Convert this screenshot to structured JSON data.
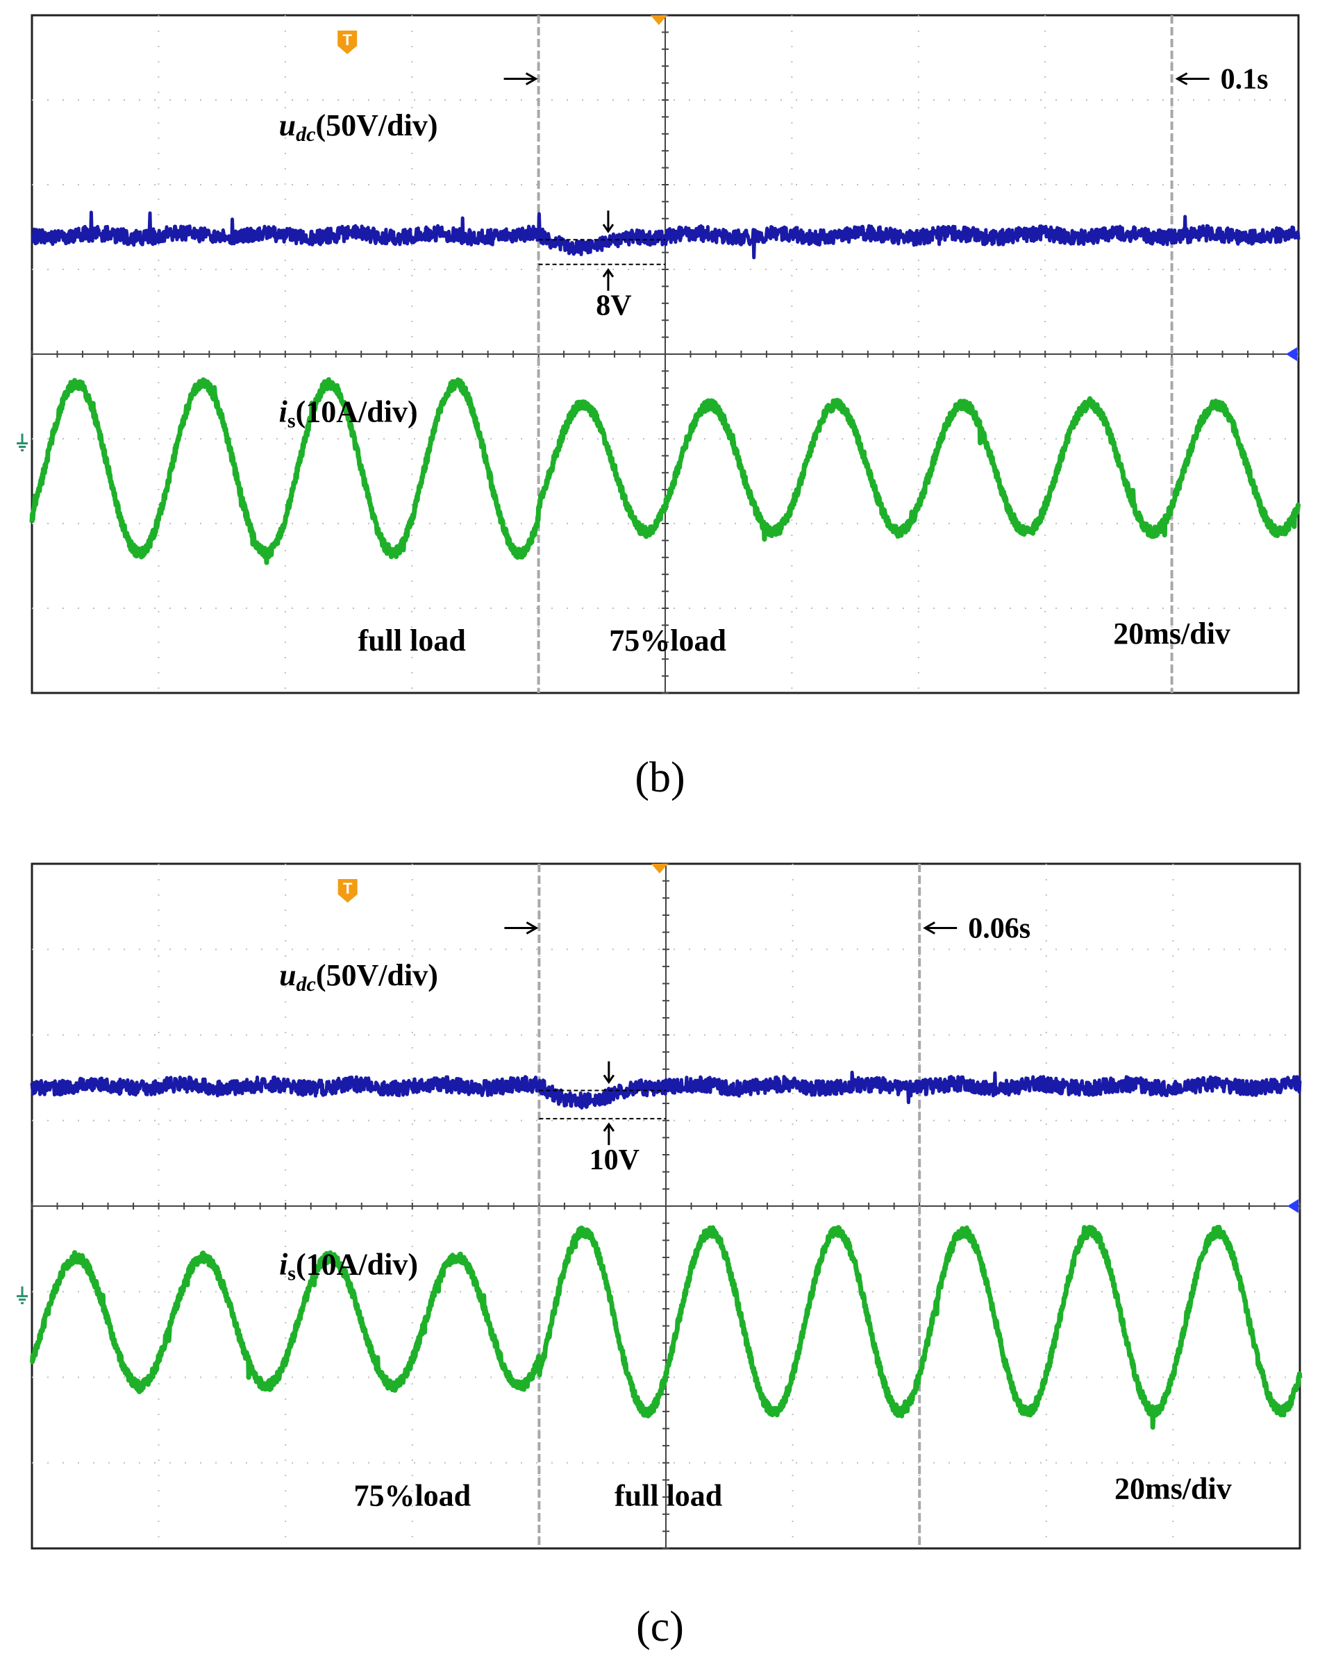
{
  "chart_data": [
    {
      "type": "line",
      "caption": "(b)",
      "title": "",
      "xlabel": "",
      "ylabel": "",
      "grid": true,
      "timebase": "20ms/div",
      "x_divisions": 10,
      "y_divisions": 8,
      "trigger_marker": "T",
      "series": [
        {
          "name": "udc",
          "label_main": "u",
          "label_sub": "dc",
          "label_scale": "(50V/div)",
          "color": "#1a1aa8",
          "divisions_from_top": 2.6,
          "step_at_div": 4.0,
          "recover_at_div": 5.0,
          "dip_divisions": 0.16
        },
        {
          "name": "is",
          "label_main": "i",
          "label_sub": "s",
          "label_scale": "(10A/div)",
          "color": "#1fb02a",
          "cycles_per_div": 1.0,
          "phase_offset_div": 0.1,
          "pre_amplitude_div": 1.0,
          "post_amplitude_div": 0.75,
          "step_at_div": 4.0
        }
      ],
      "annotations": {
        "dip_value": "8V",
        "interval_value": "0.1s",
        "interval_start_div": 4.0,
        "interval_end_div": 9.0,
        "region_left_label": "full load",
        "region_right_label": "75%load"
      }
    },
    {
      "type": "line",
      "caption": "(c)",
      "title": "",
      "xlabel": "",
      "ylabel": "",
      "grid": true,
      "timebase": "20ms/div",
      "x_divisions": 10,
      "y_divisions": 8,
      "trigger_marker": "T",
      "series": [
        {
          "name": "udc",
          "label_main": "u",
          "label_sub": "dc",
          "label_scale": "(50V/div)",
          "color": "#1a1aa8",
          "divisions_from_top": 2.6,
          "step_at_div": 4.0,
          "recover_at_div": 5.0,
          "dip_divisions": 0.2
        },
        {
          "name": "is",
          "label_main": "i",
          "label_sub": "s",
          "label_scale": "(10A/div)",
          "color": "#1fb02a",
          "cycles_per_div": 1.0,
          "phase_offset_div": 0.1,
          "pre_amplitude_div": 0.75,
          "post_amplitude_div": 1.05,
          "step_at_div": 4.0
        }
      ],
      "annotations": {
        "dip_value": "10V",
        "interval_value": "0.06s",
        "interval_start_div": 4.0,
        "interval_end_div": 7.0,
        "region_left_label": "75%load",
        "region_right_label": "full load"
      }
    }
  ]
}
